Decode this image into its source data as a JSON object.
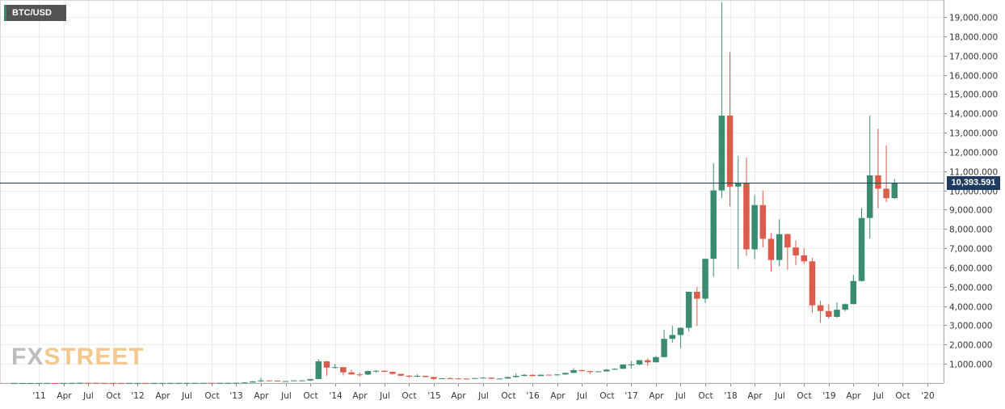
{
  "legend": {
    "symbol": "BTC/USD"
  },
  "watermark": {
    "part1": "FX",
    "part2": "STREET"
  },
  "colors": {
    "up": "#3b8b73",
    "down": "#dd5b4a",
    "grid": "#ececec",
    "price_line": "#1e3a5f",
    "axis_text": "#333333"
  },
  "current_price": {
    "label": "10,393.591",
    "value": 10393.591
  },
  "chart_data": {
    "type": "candlestick",
    "title": "BTC/USD",
    "xlabel": "",
    "ylabel": "",
    "timeframe": "monthly",
    "ylim": [
      0,
      20000
    ],
    "grid": true,
    "y_ticks": [
      {
        "value": 1000,
        "label": "1,000.000"
      },
      {
        "value": 2000,
        "label": "2,000.000"
      },
      {
        "value": 3000,
        "label": "3,000.000"
      },
      {
        "value": 4000,
        "label": "4,000.000"
      },
      {
        "value": 5000,
        "label": "5,000.000"
      },
      {
        "value": 6000,
        "label": "6,000.000"
      },
      {
        "value": 7000,
        "label": "7,000.000"
      },
      {
        "value": 8000,
        "label": "8,000.000"
      },
      {
        "value": 9000,
        "label": "9,000.000"
      },
      {
        "value": 10000,
        "label": "10,000.000"
      },
      {
        "value": 11000,
        "label": "11,000.000"
      },
      {
        "value": 12000,
        "label": "12,000.000"
      },
      {
        "value": 13000,
        "label": "13,000.000"
      },
      {
        "value": 14000,
        "label": "14,000.000"
      },
      {
        "value": 15000,
        "label": "15,000.000"
      },
      {
        "value": 16000,
        "label": "16,000.000"
      },
      {
        "value": 17000,
        "label": "17,000.000"
      },
      {
        "value": 18000,
        "label": "18,000.000"
      },
      {
        "value": 19000,
        "label": "19,000.000"
      }
    ],
    "x_ticks": [
      {
        "date": "2011-01",
        "label": "'11"
      },
      {
        "date": "2011-04",
        "label": "Apr"
      },
      {
        "date": "2011-07",
        "label": "Jul"
      },
      {
        "date": "2011-10",
        "label": "Oct"
      },
      {
        "date": "2012-01",
        "label": "'12"
      },
      {
        "date": "2012-04",
        "label": "Apr"
      },
      {
        "date": "2012-07",
        "label": "Jul"
      },
      {
        "date": "2012-10",
        "label": "Oct"
      },
      {
        "date": "2013-01",
        "label": "'13"
      },
      {
        "date": "2013-04",
        "label": "Apr"
      },
      {
        "date": "2013-07",
        "label": "Jul"
      },
      {
        "date": "2013-10",
        "label": "Oct"
      },
      {
        "date": "2014-01",
        "label": "'14"
      },
      {
        "date": "2014-04",
        "label": "Apr"
      },
      {
        "date": "2014-07",
        "label": "Jul"
      },
      {
        "date": "2014-10",
        "label": "Oct"
      },
      {
        "date": "2015-01",
        "label": "'15"
      },
      {
        "date": "2015-04",
        "label": "Apr"
      },
      {
        "date": "2015-07",
        "label": "Jul"
      },
      {
        "date": "2015-10",
        "label": "Oct"
      },
      {
        "date": "2016-01",
        "label": "'16"
      },
      {
        "date": "2016-04",
        "label": "Apr"
      },
      {
        "date": "2016-07",
        "label": "Jul"
      },
      {
        "date": "2016-10",
        "label": "Oct"
      },
      {
        "date": "2017-01",
        "label": "'17"
      },
      {
        "date": "2017-04",
        "label": "Apr"
      },
      {
        "date": "2017-07",
        "label": "Jul"
      },
      {
        "date": "2017-10",
        "label": "Oct"
      },
      {
        "date": "2018-01",
        "label": "'18"
      },
      {
        "date": "2018-04",
        "label": "Apr"
      },
      {
        "date": "2018-07",
        "label": "Jul"
      },
      {
        "date": "2018-10",
        "label": "Oct"
      },
      {
        "date": "2019-01",
        "label": "'19"
      },
      {
        "date": "2019-04",
        "label": "Apr"
      },
      {
        "date": "2019-07",
        "label": "Jul"
      },
      {
        "date": "2019-10",
        "label": "Oct"
      },
      {
        "date": "2020-01",
        "label": "'20"
      }
    ],
    "candles": [
      {
        "date": "2010-10",
        "open": 0.1,
        "high": 0.2,
        "low": 0.1,
        "close": 0.2
      },
      {
        "date": "2010-11",
        "open": 0.2,
        "high": 0.4,
        "low": 0.2,
        "close": 0.3
      },
      {
        "date": "2010-12",
        "open": 0.3,
        "high": 0.3,
        "low": 0.2,
        "close": 0.3
      },
      {
        "date": "2011-01",
        "open": 0.3,
        "high": 0.9,
        "low": 0.3,
        "close": 0.5
      },
      {
        "date": "2011-02",
        "open": 0.5,
        "high": 1.1,
        "low": 0.5,
        "close": 0.9
      },
      {
        "date": "2011-03",
        "open": 0.9,
        "high": 0.9,
        "low": 0.7,
        "close": 0.8
      },
      {
        "date": "2011-04",
        "open": 0.8,
        "high": 3.5,
        "low": 0.6,
        "close": 3.5
      },
      {
        "date": "2011-05",
        "open": 3.5,
        "high": 9.2,
        "low": 3.0,
        "close": 8.7
      },
      {
        "date": "2011-06",
        "open": 8.7,
        "high": 31.9,
        "low": 8.5,
        "close": 16.1
      },
      {
        "date": "2011-07",
        "open": 16.1,
        "high": 17.5,
        "low": 12.0,
        "close": 13.4
      },
      {
        "date": "2011-08",
        "open": 13.4,
        "high": 14.0,
        "low": 7.0,
        "close": 8.2
      },
      {
        "date": "2011-09",
        "open": 8.2,
        "high": 8.6,
        "low": 4.6,
        "close": 5.0
      },
      {
        "date": "2011-10",
        "open": 5.0,
        "high": 5.2,
        "low": 2.3,
        "close": 3.3
      },
      {
        "date": "2011-11",
        "open": 3.3,
        "high": 3.6,
        "low": 2.0,
        "close": 3.0
      },
      {
        "date": "2011-12",
        "open": 3.0,
        "high": 4.8,
        "low": 2.7,
        "close": 4.7
      },
      {
        "date": "2012-01",
        "open": 4.7,
        "high": 7.2,
        "low": 4.6,
        "close": 5.5
      },
      {
        "date": "2012-02",
        "open": 5.5,
        "high": 6.3,
        "low": 4.3,
        "close": 4.9
      },
      {
        "date": "2012-03",
        "open": 4.9,
        "high": 5.4,
        "low": 4.6,
        "close": 4.9
      },
      {
        "date": "2012-04",
        "open": 4.9,
        "high": 5.3,
        "low": 4.7,
        "close": 5.0
      },
      {
        "date": "2012-05",
        "open": 5.0,
        "high": 5.2,
        "low": 4.9,
        "close": 5.2
      },
      {
        "date": "2012-06",
        "open": 5.2,
        "high": 6.7,
        "low": 5.2,
        "close": 6.7
      },
      {
        "date": "2012-07",
        "open": 6.7,
        "high": 9.7,
        "low": 6.5,
        "close": 9.4
      },
      {
        "date": "2012-08",
        "open": 9.4,
        "high": 15.4,
        "low": 7.1,
        "close": 10.2
      },
      {
        "date": "2012-09",
        "open": 10.2,
        "high": 12.5,
        "low": 10.0,
        "close": 12.4
      },
      {
        "date": "2012-10",
        "open": 12.4,
        "high": 12.9,
        "low": 10.3,
        "close": 11.2
      },
      {
        "date": "2012-11",
        "open": 11.2,
        "high": 12.6,
        "low": 10.1,
        "close": 12.6
      },
      {
        "date": "2012-12",
        "open": 12.6,
        "high": 13.8,
        "low": 12.4,
        "close": 13.5
      },
      {
        "date": "2013-01",
        "open": 13.5,
        "high": 20.7,
        "low": 13.2,
        "close": 20.4
      },
      {
        "date": "2013-02",
        "open": 20.4,
        "high": 33.4,
        "low": 19.1,
        "close": 33.4
      },
      {
        "date": "2013-03",
        "open": 33.4,
        "high": 94.0,
        "low": 33.0,
        "close": 93.0
      },
      {
        "date": "2013-04",
        "open": 93.0,
        "high": 266.0,
        "low": 50.0,
        "close": 139.0
      },
      {
        "date": "2013-05",
        "open": 139.0,
        "high": 140.0,
        "low": 79.0,
        "close": 129.0
      },
      {
        "date": "2013-06",
        "open": 129.0,
        "high": 129.0,
        "low": 88.0,
        "close": 97.0
      },
      {
        "date": "2013-07",
        "open": 97.0,
        "high": 110.0,
        "low": 65.0,
        "close": 106.0
      },
      {
        "date": "2013-08",
        "open": 106.0,
        "high": 141.0,
        "low": 100.0,
        "close": 141.0
      },
      {
        "date": "2013-09",
        "open": 141.0,
        "high": 150.0,
        "low": 110.0,
        "close": 141.0
      },
      {
        "date": "2013-10",
        "open": 141.0,
        "high": 215.0,
        "low": 105.0,
        "close": 211.0
      },
      {
        "date": "2013-11",
        "open": 211.0,
        "high": 1242.0,
        "low": 200.0,
        "close": 1129.0
      },
      {
        "date": "2013-12",
        "open": 1129.0,
        "high": 1156.0,
        "low": 380.0,
        "close": 805.0
      },
      {
        "date": "2014-01",
        "open": 805.0,
        "high": 1000.0,
        "low": 750.0,
        "close": 830.0
      },
      {
        "date": "2014-02",
        "open": 830.0,
        "high": 850.0,
        "low": 400.0,
        "close": 560.0
      },
      {
        "date": "2014-03",
        "open": 560.0,
        "high": 700.0,
        "low": 440.0,
        "close": 450.0
      },
      {
        "date": "2014-04",
        "open": 450.0,
        "high": 550.0,
        "low": 340.0,
        "close": 445.0
      },
      {
        "date": "2014-05",
        "open": 445.0,
        "high": 650.0,
        "low": 420.0,
        "close": 630.0
      },
      {
        "date": "2014-06",
        "open": 630.0,
        "high": 680.0,
        "low": 550.0,
        "close": 640.0
      },
      {
        "date": "2014-07",
        "open": 640.0,
        "high": 655.0,
        "low": 570.0,
        "close": 585.0
      },
      {
        "date": "2014-08",
        "open": 585.0,
        "high": 600.0,
        "low": 440.0,
        "close": 480.0
      },
      {
        "date": "2014-09",
        "open": 480.0,
        "high": 490.0,
        "low": 365.0,
        "close": 387.0
      },
      {
        "date": "2014-10",
        "open": 387.0,
        "high": 415.0,
        "low": 275.0,
        "close": 338.0
      },
      {
        "date": "2014-11",
        "open": 338.0,
        "high": 460.0,
        "low": 310.0,
        "close": 378.0
      },
      {
        "date": "2014-12",
        "open": 378.0,
        "high": 390.0,
        "low": 300.0,
        "close": 320.0
      },
      {
        "date": "2015-01",
        "open": 320.0,
        "high": 320.0,
        "low": 170.0,
        "close": 218.0
      },
      {
        "date": "2015-02",
        "open": 218.0,
        "high": 265.0,
        "low": 210.0,
        "close": 254.0
      },
      {
        "date": "2015-03",
        "open": 254.0,
        "high": 300.0,
        "low": 240.0,
        "close": 244.0
      },
      {
        "date": "2015-04",
        "open": 244.0,
        "high": 260.0,
        "low": 215.0,
        "close": 236.0
      },
      {
        "date": "2015-05",
        "open": 236.0,
        "high": 247.0,
        "low": 225.0,
        "close": 230.0
      },
      {
        "date": "2015-06",
        "open": 230.0,
        "high": 270.0,
        "low": 220.0,
        "close": 263.0
      },
      {
        "date": "2015-07",
        "open": 263.0,
        "high": 320.0,
        "low": 255.0,
        "close": 284.0
      },
      {
        "date": "2015-08",
        "open": 284.0,
        "high": 285.0,
        "low": 200.0,
        "close": 230.0
      },
      {
        "date": "2015-09",
        "open": 230.0,
        "high": 245.0,
        "low": 225.0,
        "close": 236.0
      },
      {
        "date": "2015-10",
        "open": 236.0,
        "high": 330.0,
        "low": 235.0,
        "close": 314.0
      },
      {
        "date": "2015-11",
        "open": 314.0,
        "high": 500.0,
        "low": 300.0,
        "close": 377.0
      },
      {
        "date": "2015-12",
        "open": 377.0,
        "high": 465.0,
        "low": 350.0,
        "close": 430.0
      },
      {
        "date": "2016-01",
        "open": 430.0,
        "high": 460.0,
        "low": 350.0,
        "close": 368.0
      },
      {
        "date": "2016-02",
        "open": 368.0,
        "high": 440.0,
        "low": 365.0,
        "close": 437.0
      },
      {
        "date": "2016-03",
        "open": 437.0,
        "high": 440.0,
        "low": 400.0,
        "close": 416.0
      },
      {
        "date": "2016-04",
        "open": 416.0,
        "high": 470.0,
        "low": 410.0,
        "close": 448.0
      },
      {
        "date": "2016-05",
        "open": 448.0,
        "high": 550.0,
        "low": 440.0,
        "close": 531.0
      },
      {
        "date": "2016-06",
        "open": 531.0,
        "high": 780.0,
        "low": 530.0,
        "close": 673.0
      },
      {
        "date": "2016-07",
        "open": 673.0,
        "high": 700.0,
        "low": 610.0,
        "close": 624.0
      },
      {
        "date": "2016-08",
        "open": 624.0,
        "high": 625.0,
        "low": 470.0,
        "close": 575.0
      },
      {
        "date": "2016-09",
        "open": 575.0,
        "high": 625.0,
        "low": 570.0,
        "close": 610.0
      },
      {
        "date": "2016-10",
        "open": 610.0,
        "high": 740.0,
        "low": 600.0,
        "close": 700.0
      },
      {
        "date": "2016-11",
        "open": 700.0,
        "high": 760.0,
        "low": 690.0,
        "close": 745.0
      },
      {
        "date": "2016-12",
        "open": 745.0,
        "high": 980.0,
        "low": 740.0,
        "close": 965.0
      },
      {
        "date": "2017-01",
        "open": 965.0,
        "high": 1150.0,
        "low": 750.0,
        "close": 970.0
      },
      {
        "date": "2017-02",
        "open": 970.0,
        "high": 1200.0,
        "low": 940.0,
        "close": 1190.0
      },
      {
        "date": "2017-03",
        "open": 1190.0,
        "high": 1290.0,
        "low": 890.0,
        "close": 1080.0
      },
      {
        "date": "2017-04",
        "open": 1080.0,
        "high": 1400.0,
        "low": 1070.0,
        "close": 1350.0
      },
      {
        "date": "2017-05",
        "open": 1350.0,
        "high": 2760.0,
        "low": 1350.0,
        "close": 2300.0
      },
      {
        "date": "2017-06",
        "open": 2300.0,
        "high": 2980.0,
        "low": 2100.0,
        "close": 2500.0
      },
      {
        "date": "2017-07",
        "open": 2500.0,
        "high": 2900.0,
        "low": 1830.0,
        "close": 2870.0
      },
      {
        "date": "2017-08",
        "open": 2870.0,
        "high": 4750.0,
        "low": 2690.0,
        "close": 4740.0
      },
      {
        "date": "2017-09",
        "open": 4740.0,
        "high": 5000.0,
        "low": 2970.0,
        "close": 4380.0
      },
      {
        "date": "2017-10",
        "open": 4380.0,
        "high": 6470.0,
        "low": 4160.0,
        "close": 6450.0
      },
      {
        "date": "2017-11",
        "open": 6450.0,
        "high": 11420.0,
        "low": 5520.0,
        "close": 10000.0
      },
      {
        "date": "2017-12",
        "open": 10000.0,
        "high": 19770.0,
        "low": 9600.0,
        "close": 13880.0
      },
      {
        "date": "2018-01",
        "open": 13880.0,
        "high": 17180.0,
        "low": 9170.0,
        "close": 10200.0
      },
      {
        "date": "2018-02",
        "open": 10200.0,
        "high": 11780.0,
        "low": 5920.0,
        "close": 10370.0
      },
      {
        "date": "2018-03",
        "open": 10370.0,
        "high": 11700.0,
        "low": 6600.0,
        "close": 6940.0
      },
      {
        "date": "2018-04",
        "open": 6940.0,
        "high": 9760.0,
        "low": 6430.0,
        "close": 9240.0
      },
      {
        "date": "2018-05",
        "open": 9240.0,
        "high": 10000.0,
        "low": 7040.0,
        "close": 7490.0
      },
      {
        "date": "2018-06",
        "open": 7490.0,
        "high": 7780.0,
        "low": 5780.0,
        "close": 6390.0
      },
      {
        "date": "2018-07",
        "open": 6390.0,
        "high": 8500.0,
        "low": 6070.0,
        "close": 7730.0
      },
      {
        "date": "2018-08",
        "open": 7730.0,
        "high": 7760.0,
        "low": 5880.0,
        "close": 7040.0
      },
      {
        "date": "2018-09",
        "open": 7040.0,
        "high": 7410.0,
        "low": 6120.0,
        "close": 6630.0
      },
      {
        "date": "2018-10",
        "open": 6630.0,
        "high": 7000.0,
        "low": 6200.0,
        "close": 6320.0
      },
      {
        "date": "2018-11",
        "open": 6320.0,
        "high": 6500.0,
        "low": 3650.0,
        "close": 4040.0
      },
      {
        "date": "2018-12",
        "open": 4040.0,
        "high": 4280.0,
        "low": 3130.0,
        "close": 3740.0
      },
      {
        "date": "2019-01",
        "open": 3740.0,
        "high": 4080.0,
        "low": 3350.0,
        "close": 3440.0
      },
      {
        "date": "2019-02",
        "open": 3440.0,
        "high": 4200.0,
        "low": 3390.0,
        "close": 3810.0
      },
      {
        "date": "2019-03",
        "open": 3810.0,
        "high": 4140.0,
        "low": 3730.0,
        "close": 4100.0
      },
      {
        "date": "2019-04",
        "open": 4100.0,
        "high": 5620.0,
        "low": 4090.0,
        "close": 5300.0
      },
      {
        "date": "2019-05",
        "open": 5300.0,
        "high": 9080.0,
        "low": 5280.0,
        "close": 8570.0
      },
      {
        "date": "2019-06",
        "open": 8570.0,
        "high": 13880.0,
        "low": 7500.0,
        "close": 10780.0
      },
      {
        "date": "2019-07",
        "open": 10780.0,
        "high": 13200.0,
        "low": 9080.0,
        "close": 10090.0
      },
      {
        "date": "2019-08",
        "open": 10090.0,
        "high": 12340.0,
        "low": 9400.0,
        "close": 9600.0
      },
      {
        "date": "2019-09",
        "open": 9600.0,
        "high": 10600.0,
        "low": 9560.0,
        "close": 10393.591
      }
    ]
  }
}
